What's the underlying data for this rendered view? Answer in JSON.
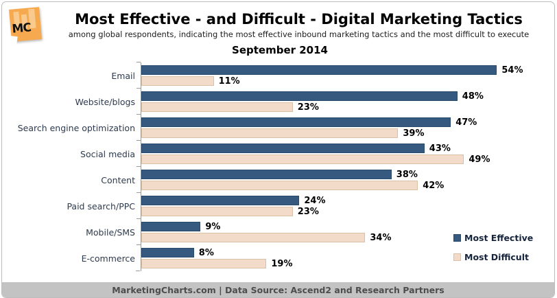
{
  "logo": {
    "text": "MC"
  },
  "header": {
    "title": "Most Effective - and Difficult - Digital Marketing Tactics",
    "subtitle": "among global respondents, indicating the most effective inbound marketing tactics and the most difficult to execute",
    "period": "September 2014"
  },
  "chart_data": {
    "type": "bar",
    "orientation": "horizontal",
    "title": "Most Effective - and Difficult - Digital Marketing Tactics",
    "subtitle": "among global respondents, indicating the most effective inbound marketing tactics and the most difficult to execute",
    "period": "September 2014",
    "categories": [
      "Email",
      "Website/blogs",
      "Search engine optimization",
      "Social media",
      "Content",
      "Paid search/PPC",
      "Mobile/SMS",
      "E-commerce"
    ],
    "series": [
      {
        "name": "Most Effective",
        "color": "#35597F",
        "border": "#27496B",
        "values": [
          54,
          48,
          47,
          43,
          38,
          24,
          9,
          8
        ]
      },
      {
        "name": "Most Difficult",
        "color": "#F2DCC9",
        "border": "#DCC0A5",
        "values": [
          11,
          23,
          39,
          49,
          42,
          23,
          34,
          19
        ]
      }
    ],
    "value_suffix": "%",
    "xlim": [
      0,
      62
    ],
    "grid": false,
    "legend_position": "bottom-right",
    "axis_color": "#9a9a9a"
  },
  "footer": {
    "text": "MarketingCharts.com | Data Source: Ascend2 and Research Partners"
  }
}
